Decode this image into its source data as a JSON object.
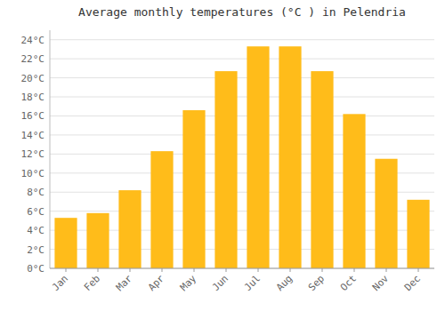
{
  "chart_data": {
    "type": "bar",
    "title": "Average monthly temperatures (°C ) in Pelendria",
    "categories": [
      "Jan",
      "Feb",
      "Mar",
      "Apr",
      "May",
      "Jun",
      "Jul",
      "Aug",
      "Sep",
      "Oct",
      "Nov",
      "Dec"
    ],
    "values": [
      5.3,
      5.8,
      8.2,
      12.3,
      16.6,
      20.7,
      23.3,
      23.3,
      20.7,
      16.2,
      11.5,
      7.2
    ],
    "color": "#FFBC1A",
    "ylim": [
      0,
      25
    ],
    "yticks": [
      {
        "value": 0,
        "label": "0°C"
      },
      {
        "value": 2,
        "label": "2°C"
      },
      {
        "value": 4,
        "label": "4°C"
      },
      {
        "value": 6,
        "label": "6°C"
      },
      {
        "value": 8,
        "label": "8°C"
      },
      {
        "value": 10,
        "label": "10°C"
      },
      {
        "value": 12,
        "label": "12°C"
      },
      {
        "value": 14,
        "label": "14°C"
      },
      {
        "value": 16,
        "label": "16°C"
      },
      {
        "value": 18,
        "label": "18°C"
      },
      {
        "value": 20,
        "label": "20°C"
      },
      {
        "value": 22,
        "label": "22°C"
      },
      {
        "value": 24,
        "label": "24°C"
      }
    ],
    "grid": true
  }
}
